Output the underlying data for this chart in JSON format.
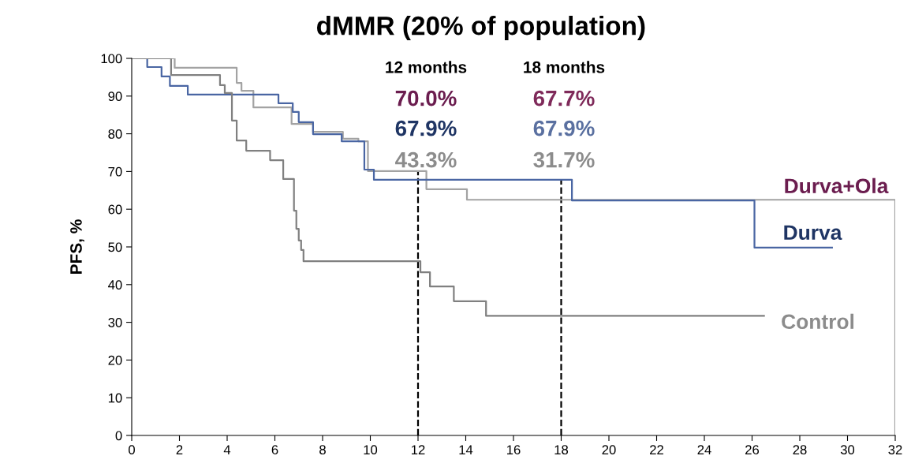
{
  "chart_data": {
    "type": "step",
    "title": "dMMR (20% of population)",
    "ylabel": "PFS, %",
    "xlim": [
      0,
      32
    ],
    "xticks": [
      0,
      2,
      4,
      6,
      8,
      10,
      12,
      14,
      16,
      18,
      20,
      22,
      24,
      26,
      28,
      30,
      32
    ],
    "ylim": [
      0,
      100
    ],
    "yticks": [
      0,
      10,
      20,
      30,
      40,
      50,
      60,
      70,
      80,
      90,
      100
    ],
    "grid": false,
    "legend": false,
    "line_style": "solid",
    "series": [
      {
        "name": "Durva+Ola",
        "color": "#a3a3a3",
        "x": [
          0,
          1.8,
          4.4,
          4.6,
          5.1,
          6.7,
          7.6,
          8.85,
          9.5,
          9.9,
          12.35,
          14.05,
          32,
          32
        ],
        "values": [
          100,
          97.5,
          93.5,
          91.4,
          87.0,
          82.6,
          80.5,
          78.7,
          78.0,
          70.1,
          65.3,
          62.5,
          62.5,
          0
        ]
      },
      {
        "name": "Durva",
        "color": "#4a66a3",
        "x": [
          0,
          0.65,
          1.25,
          1.6,
          2.35,
          6.15,
          6.75,
          7.0,
          7.6,
          8.8,
          9.75,
          10.15,
          18.45,
          26.1,
          29.35
        ],
        "values": [
          100,
          97.7,
          95.2,
          92.7,
          90.4,
          88.1,
          85.8,
          83.1,
          79.9,
          78.0,
          70.5,
          67.8,
          62.3,
          49.8,
          49.8
        ]
      },
      {
        "name": "Control",
        "color": "#808080",
        "x": [
          0,
          1.65,
          3.7,
          3.9,
          4.2,
          4.4,
          4.8,
          5.8,
          6.35,
          6.8,
          6.9,
          7.0,
          7.1,
          7.2,
          12.1,
          12.5,
          13.5,
          14.85,
          26.5
        ],
        "values": [
          100,
          95.6,
          92.9,
          90.8,
          83.5,
          78.2,
          75.5,
          73.0,
          68.0,
          59.6,
          54.8,
          51.7,
          49.2,
          46.2,
          43.3,
          39.5,
          35.6,
          31.7,
          31.7
        ]
      }
    ],
    "ref_lines": [
      {
        "axis": "x",
        "value": 12,
        "color": "#000000",
        "line_style": "dashed"
      },
      {
        "axis": "x",
        "value": 18,
        "color": "#000000",
        "line_style": "dashed"
      }
    ],
    "annotations": [
      "12 months",
      "70.0%",
      "67.9%",
      "43.3%",
      "18 months",
      "67.7%",
      "67.9%",
      "31.7%"
    ]
  }
}
